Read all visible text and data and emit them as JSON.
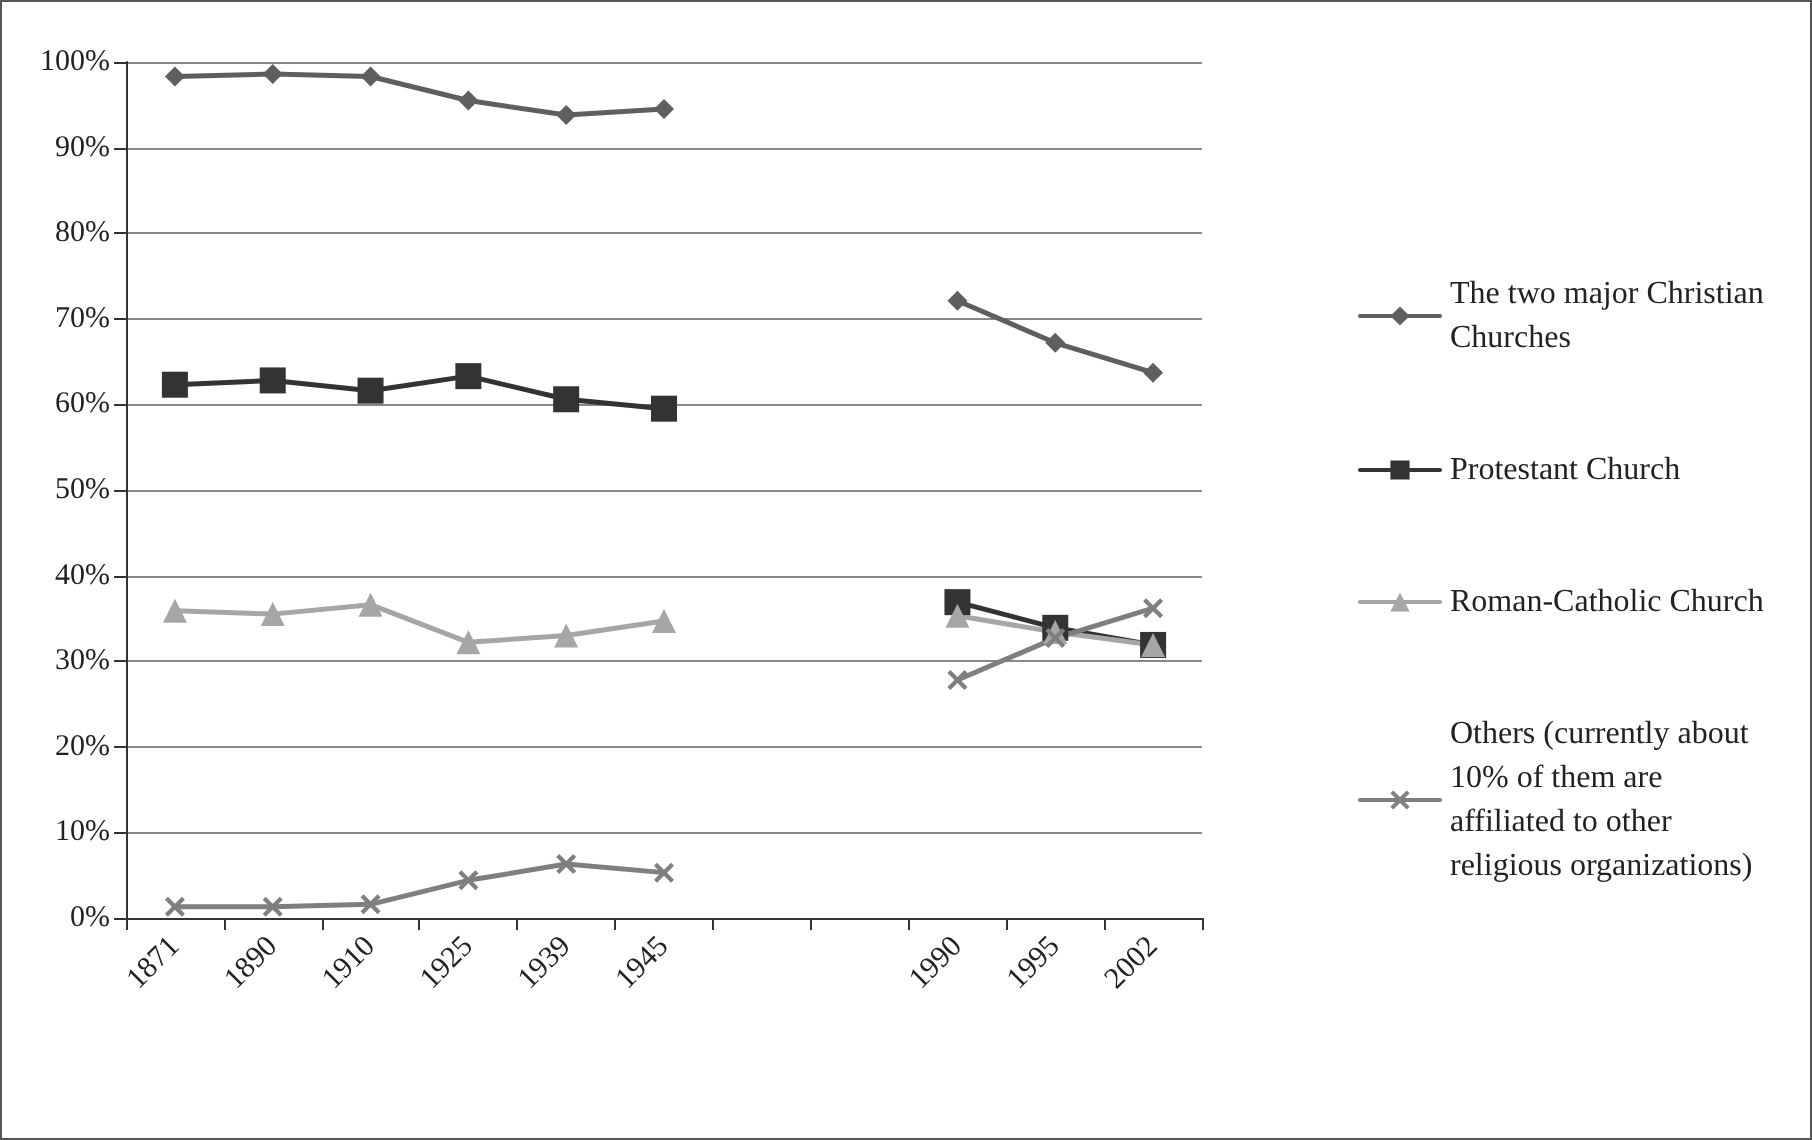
{
  "chart_data": {
    "type": "line",
    "categories": [
      "1871",
      "1890",
      "1910",
      "1925",
      "1939",
      "1945",
      null,
      null,
      "1990",
      "1995",
      "2002"
    ],
    "series": [
      {
        "name": "The two major Christian Churches",
        "color": "#5f5f5f",
        "marker": "diamond",
        "values": [
          98.3,
          98.6,
          98.3,
          95.5,
          93.8,
          94.5,
          null,
          null,
          72.1,
          67.2,
          63.7
        ]
      },
      {
        "name": "Protestant Church",
        "color": "#333333",
        "marker": "square",
        "values": [
          62.3,
          62.8,
          61.6,
          63.3,
          60.6,
          59.5,
          null,
          null,
          36.9,
          33.9,
          31.9
        ]
      },
      {
        "name": "Roman-Catholic Church",
        "color": "#a6a6a6",
        "marker": "triangle",
        "values": [
          35.9,
          35.5,
          36.6,
          32.2,
          33.0,
          34.7,
          null,
          null,
          35.3,
          33.4,
          31.9
        ]
      },
      {
        "name": "Others (currently about 10% of them are affiliated to other religious organizations)",
        "color": "#7f7f7f",
        "marker": "cross",
        "values": [
          1.3,
          1.3,
          1.6,
          4.4,
          6.3,
          5.3,
          null,
          null,
          27.8,
          32.7,
          36.2
        ]
      }
    ],
    "ylim": [
      0,
      100
    ],
    "yticks": [
      {
        "value": 0,
        "label": "0%"
      },
      {
        "value": 10,
        "label": "10%"
      },
      {
        "value": 20,
        "label": "20%"
      },
      {
        "value": 30,
        "label": "30%"
      },
      {
        "value": 40,
        "label": "40%"
      },
      {
        "value": 50,
        "label": "50%"
      },
      {
        "value": 60,
        "label": "60%"
      },
      {
        "value": 70,
        "label": "70%"
      },
      {
        "value": 80,
        "label": "80%"
      },
      {
        "value": 90,
        "label": "90%"
      },
      {
        "value": 100,
        "label": "100%"
      }
    ],
    "grid": "y",
    "legend": "right",
    "line_style": "solid"
  }
}
